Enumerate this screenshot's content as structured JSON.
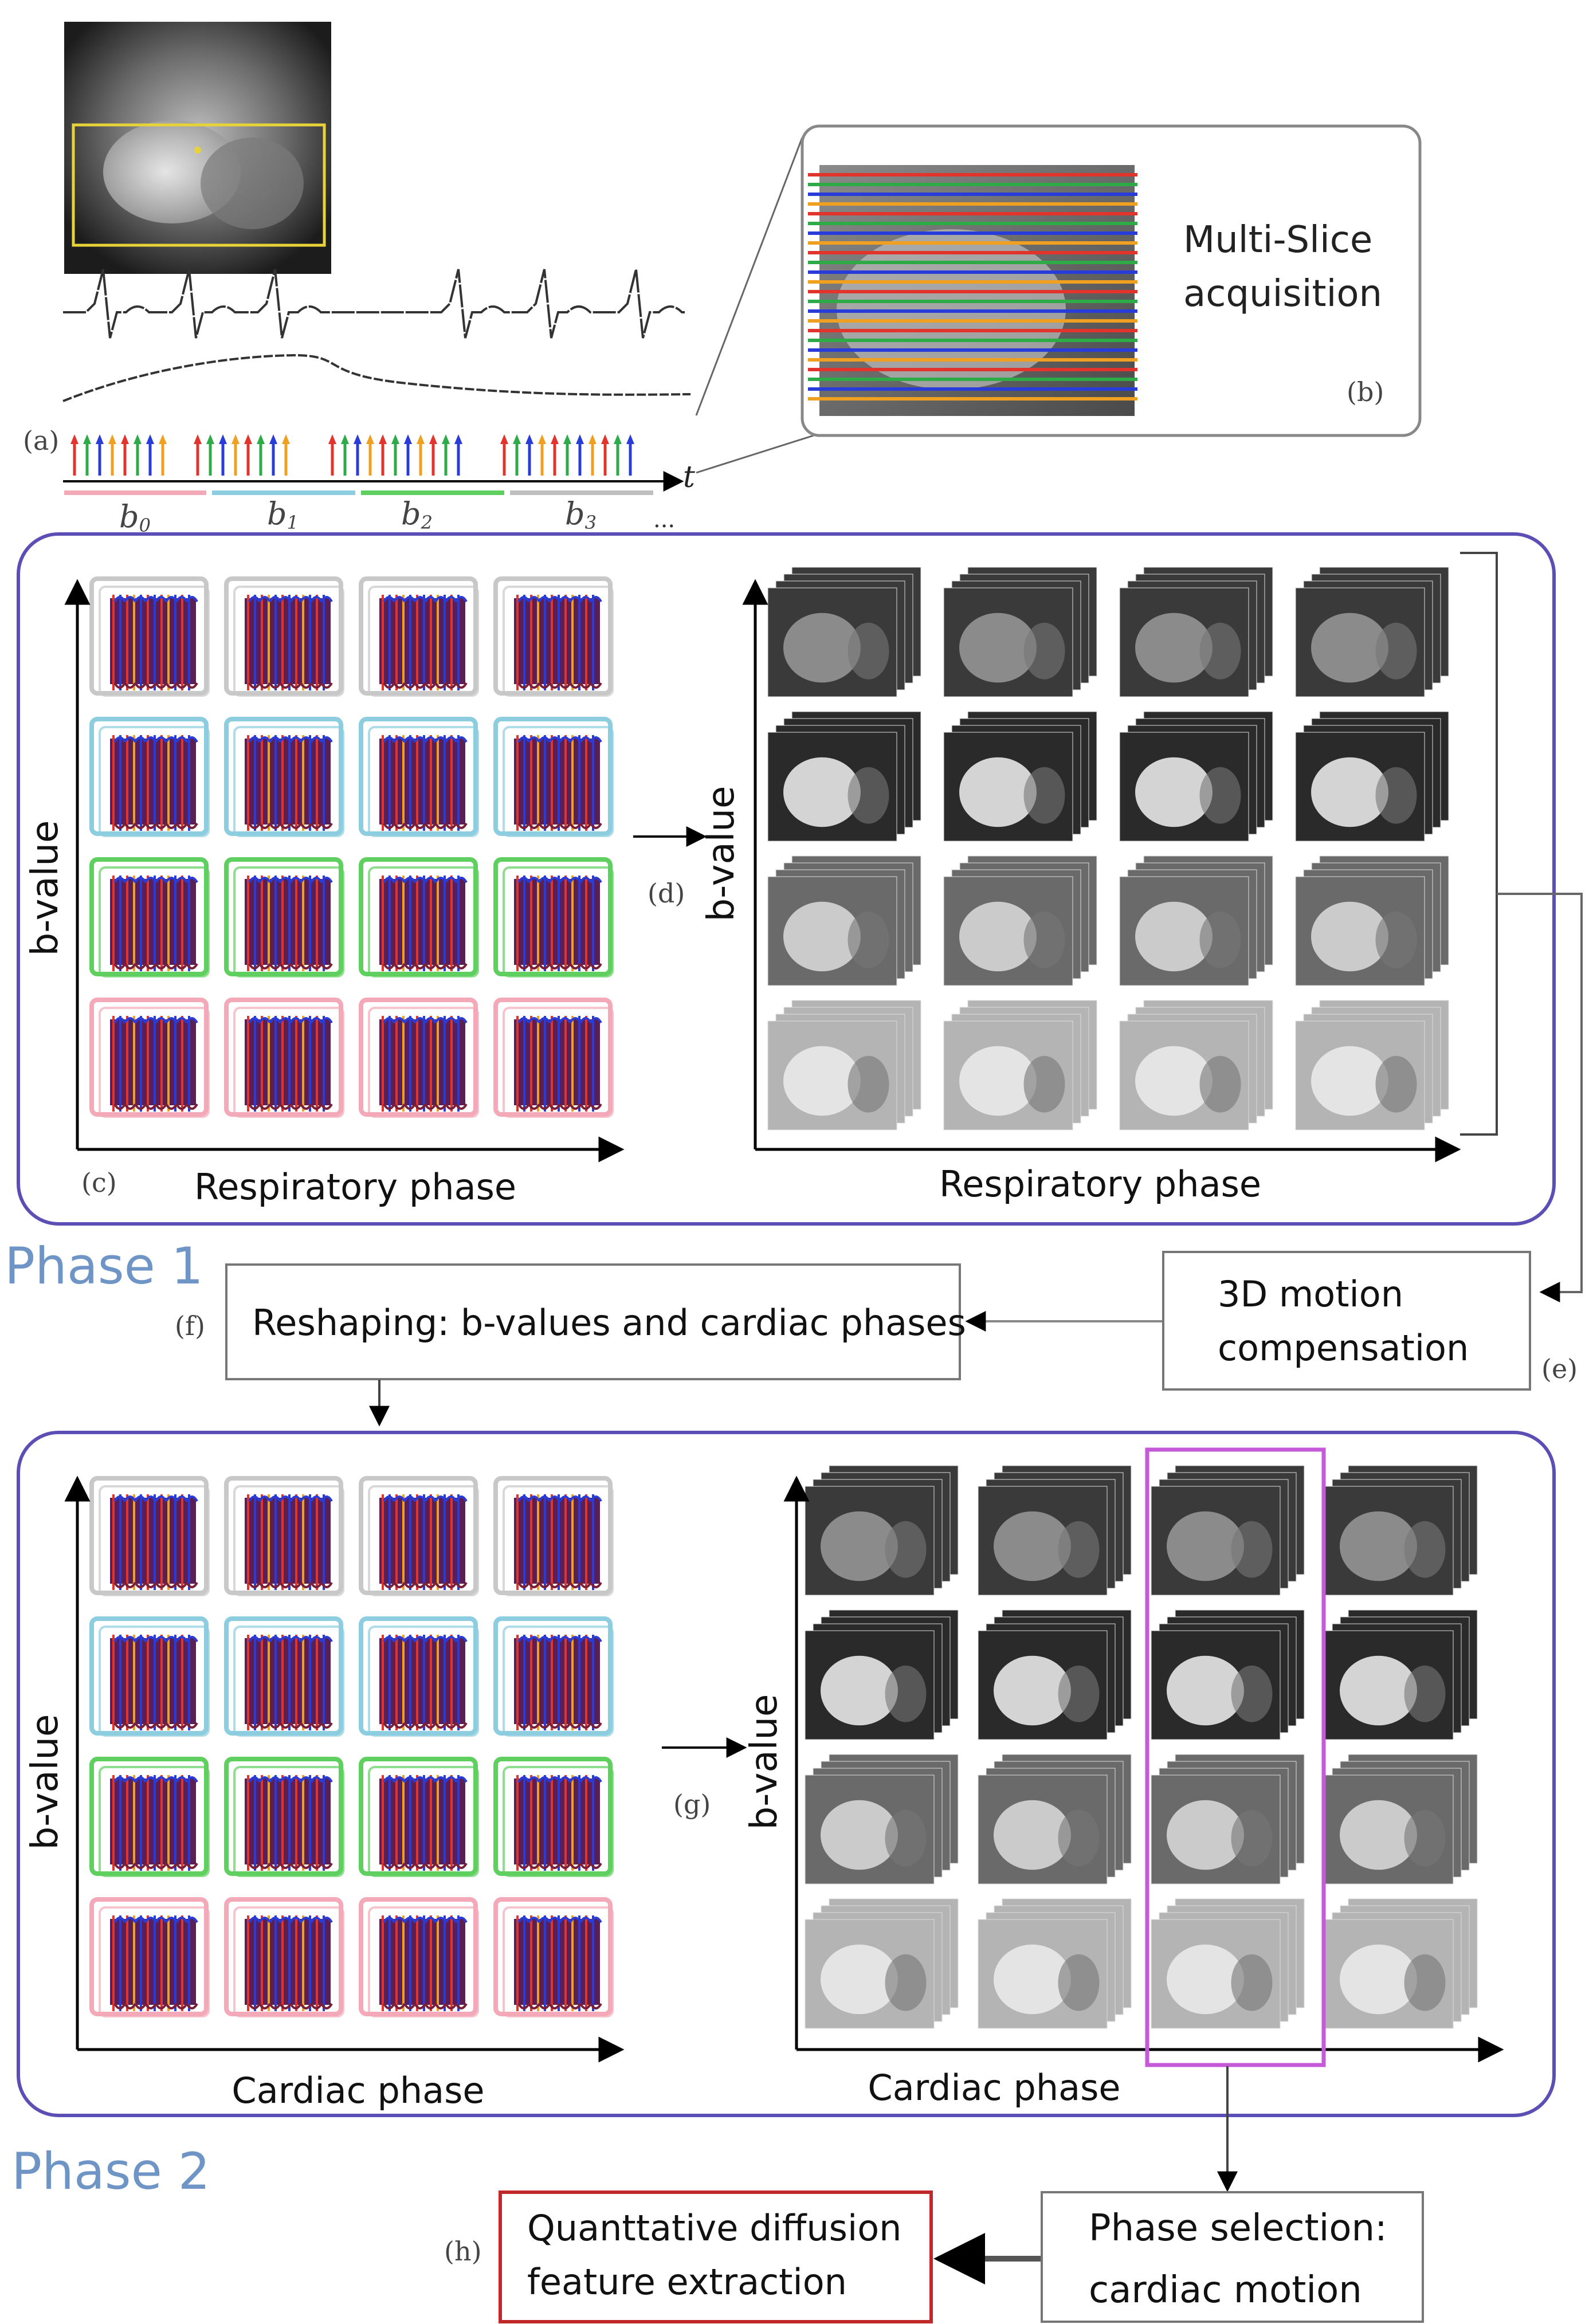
{
  "labels": {
    "a": "(a)",
    "b": "(b)",
    "c": "(c)",
    "d": "(d)",
    "e": "(e)",
    "f": "(f)",
    "g": "(g)",
    "h": "(h)"
  },
  "b_sub": [
    "b",
    "0",
    "1",
    "2",
    "3"
  ],
  "t_label": "t",
  "dots": "...",
  "multi_slice": [
    "Multi-Slice",
    "acquisition"
  ],
  "axis": {
    "b_value": "b-value",
    "respiratory": "Respiratory phase",
    "cardiac": "Cardiac phase"
  },
  "phase1": "Phase 1",
  "phase2": "Phase 2",
  "reshaping": "Reshaping: b-values and cardiac phases",
  "motion_comp": [
    "3D motion",
    "compensation"
  ],
  "phase_selection": [
    "Phase selection:",
    "cardiac motion"
  ],
  "quant": [
    "Quanttative diffusion",
    "feature extraction"
  ],
  "colors": {
    "frame": "#5b4fb5",
    "phase_text": "#6f95c6",
    "highlight": "#c45ad8",
    "quant_border": "#c0282a",
    "row_gray": "#c8c8c8",
    "row_blue": "#8ccde0",
    "row_green": "#5fd060",
    "row_pink": "#f3a9b8",
    "line_red": "#e0342c",
    "line_green": "#2faa48",
    "line_blue": "#2a3cd8",
    "line_orange": "#f0a020"
  }
}
